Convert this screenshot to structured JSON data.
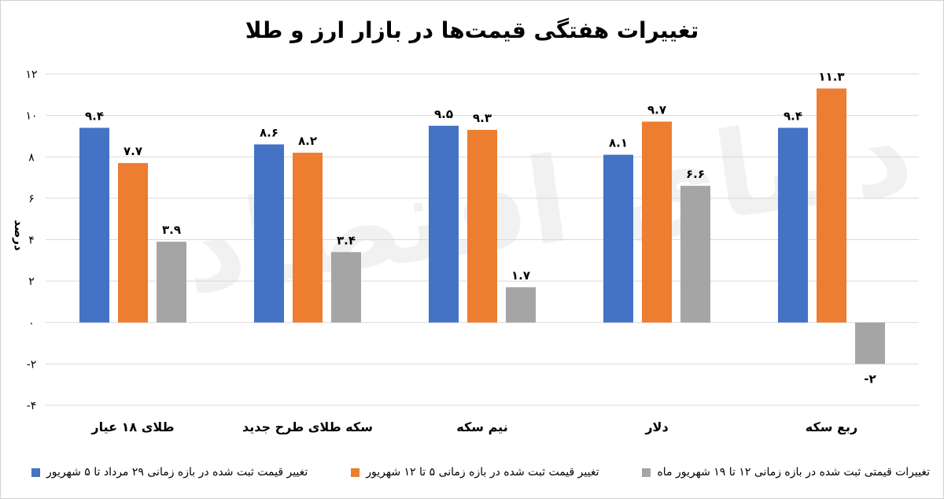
{
  "chart_data": {
    "type": "bar",
    "title": "تغییرات هفتگی قیمت‌ها در بازار ارز و طلا",
    "ylabel": "درصد",
    "xlabel": "",
    "ylim": [
      -4,
      12
    ],
    "yticks": [
      12,
      10,
      8,
      6,
      4,
      2,
      0,
      -2,
      -4
    ],
    "ytick_labels": [
      "۱۲",
      "۱۰",
      "۸",
      "۶",
      "۴",
      "۲",
      "۰",
      "-۲",
      "-۴"
    ],
    "grid": true,
    "legend_position": "bottom",
    "categories": [
      "طلای ۱۸ عیار",
      "سکه طلای طرح جدید",
      "نیم سکه",
      "دلار",
      "ربع سکه"
    ],
    "series": [
      {
        "name": "تغییر قیمت ثبت شده در بازه زمانی ۲۹ مرداد تا ۵ شهریور",
        "color": "#4472C4",
        "values": [
          9.4,
          8.6,
          9.5,
          8.1,
          9.4
        ],
        "labels": [
          "۹.۴",
          "۸.۶",
          "۹.۵",
          "۸.۱",
          "۹.۴"
        ]
      },
      {
        "name": "تغییر قیمت ثبت شده در بازه زمانی ۵ تا ۱۲ شهریور",
        "color": "#ED7D31",
        "values": [
          7.7,
          8.2,
          9.3,
          9.7,
          11.3
        ],
        "labels": [
          "۷.۷",
          "۸.۲",
          "۹.۳",
          "۹.۷",
          "۱۱.۳"
        ]
      },
      {
        "name": "تغییرات قیمتی ثبت شده در بازه زمانی ۱۲ تا ۱۹ شهریور ماه",
        "color": "#A5A5A5",
        "values": [
          3.9,
          3.4,
          1.7,
          6.6,
          -2
        ],
        "labels": [
          "۳.۹",
          "۳.۴",
          "۱.۷",
          "۶.۶",
          "-۲"
        ]
      }
    ]
  }
}
